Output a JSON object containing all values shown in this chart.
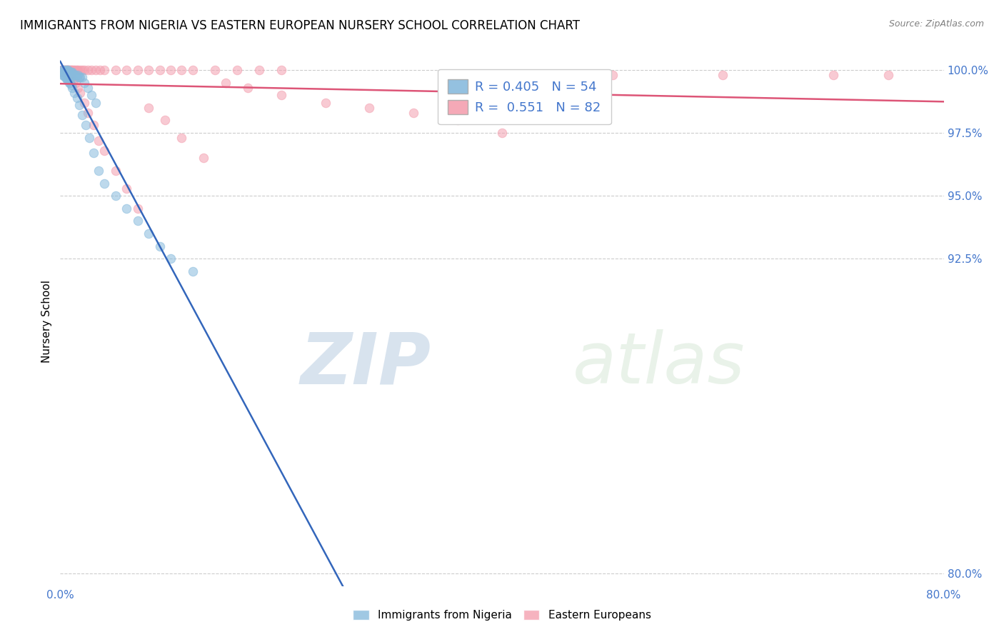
{
  "title": "IMMIGRANTS FROM NIGERIA VS EASTERN EUROPEAN NURSERY SCHOOL CORRELATION CHART",
  "source": "Source: ZipAtlas.com",
  "ylabel": "Nursery School",
  "legend_entry1": {
    "label": "Immigrants from Nigeria",
    "R": 0.405,
    "N": 54,
    "color": "#88BBDD"
  },
  "legend_entry2": {
    "label": "Eastern Europeans",
    "R": 0.551,
    "N": 82,
    "color": "#F4A0B0"
  },
  "nigeria_x": [
    0.1,
    0.2,
    0.3,
    0.3,
    0.4,
    0.5,
    0.5,
    0.6,
    0.6,
    0.7,
    0.7,
    0.8,
    0.9,
    1.0,
    1.0,
    1.1,
    1.2,
    1.3,
    1.4,
    1.5,
    1.6,
    1.7,
    1.8,
    2.0,
    2.2,
    2.5,
    2.8,
    3.2,
    0.2,
    0.3,
    0.4,
    0.5,
    0.6,
    0.7,
    0.8,
    0.9,
    1.0,
    1.1,
    1.3,
    1.5,
    1.7,
    2.0,
    2.3,
    2.6,
    3.0,
    3.5,
    4.0,
    5.0,
    6.0,
    7.0,
    8.0,
    9.0,
    10.0,
    12.0
  ],
  "nigeria_y": [
    99.9,
    100.0,
    100.0,
    99.9,
    99.9,
    100.0,
    99.9,
    99.9,
    100.0,
    99.9,
    100.0,
    99.9,
    99.9,
    99.9,
    99.8,
    99.9,
    99.8,
    99.8,
    99.8,
    99.7,
    99.8,
    99.7,
    99.7,
    99.7,
    99.5,
    99.3,
    99.0,
    98.7,
    99.8,
    99.8,
    99.7,
    99.7,
    99.6,
    99.6,
    99.5,
    99.5,
    99.4,
    99.3,
    99.1,
    98.9,
    98.6,
    98.2,
    97.8,
    97.3,
    96.7,
    96.0,
    95.5,
    95.0,
    94.5,
    94.0,
    93.5,
    93.0,
    92.5,
    92.0
  ],
  "eastern_x": [
    0.1,
    0.2,
    0.2,
    0.3,
    0.3,
    0.4,
    0.4,
    0.5,
    0.5,
    0.6,
    0.6,
    0.7,
    0.7,
    0.8,
    0.8,
    0.9,
    1.0,
    1.0,
    1.1,
    1.2,
    1.3,
    1.4,
    1.5,
    1.6,
    1.8,
    2.0,
    2.2,
    2.5,
    2.8,
    3.2,
    3.6,
    4.0,
    5.0,
    6.0,
    7.0,
    8.0,
    9.0,
    10.0,
    11.0,
    12.0,
    14.0,
    16.0,
    18.0,
    20.0,
    0.1,
    0.2,
    0.3,
    0.4,
    0.5,
    0.6,
    0.7,
    0.8,
    0.9,
    1.0,
    1.2,
    1.4,
    1.6,
    1.8,
    2.2,
    2.5,
    3.0,
    3.5,
    4.0,
    5.0,
    6.0,
    7.0,
    8.0,
    9.5,
    11.0,
    13.0,
    15.0,
    17.0,
    20.0,
    24.0,
    28.0,
    32.0,
    36.0,
    40.0,
    50.0,
    60.0,
    70.0,
    75.0
  ],
  "eastern_y": [
    100.0,
    100.0,
    100.0,
    100.0,
    100.0,
    100.0,
    100.0,
    100.0,
    100.0,
    100.0,
    100.0,
    100.0,
    100.0,
    100.0,
    100.0,
    100.0,
    100.0,
    100.0,
    100.0,
    100.0,
    100.0,
    100.0,
    100.0,
    100.0,
    100.0,
    100.0,
    100.0,
    100.0,
    100.0,
    100.0,
    100.0,
    100.0,
    100.0,
    100.0,
    100.0,
    100.0,
    100.0,
    100.0,
    100.0,
    100.0,
    100.0,
    100.0,
    100.0,
    100.0,
    99.9,
    99.9,
    99.9,
    99.9,
    99.9,
    99.8,
    99.8,
    99.8,
    99.7,
    99.7,
    99.6,
    99.5,
    99.3,
    99.1,
    98.7,
    98.3,
    97.8,
    97.2,
    96.8,
    96.0,
    95.3,
    94.5,
    98.5,
    98.0,
    97.3,
    96.5,
    99.5,
    99.3,
    99.0,
    98.7,
    98.5,
    98.3,
    98.0,
    97.5,
    99.8,
    99.8,
    99.8,
    99.8
  ],
  "xlim": [
    0.0,
    80.0
  ],
  "ylim": [
    79.5,
    100.5
  ],
  "right_ticks": [
    100.0,
    97.5,
    95.0,
    92.5,
    80.0
  ],
  "right_tick_labels": [
    "100.0%",
    "97.5%",
    "95.0%",
    "92.5%",
    "80.0%"
  ],
  "nigeria_color": "#88BBDD",
  "eastern_color": "#F4A0B0",
  "nigeria_line_color": "#3366BB",
  "eastern_line_color": "#DD5577",
  "marker_size": 80,
  "marker_alpha": 0.55,
  "watermark_zip": "ZIP",
  "watermark_atlas": "atlas",
  "tick_color": "#4477CC",
  "grid_color": "#CCCCCC",
  "title_fontsize": 12,
  "source_text": "Source: ZipAtlas.com"
}
